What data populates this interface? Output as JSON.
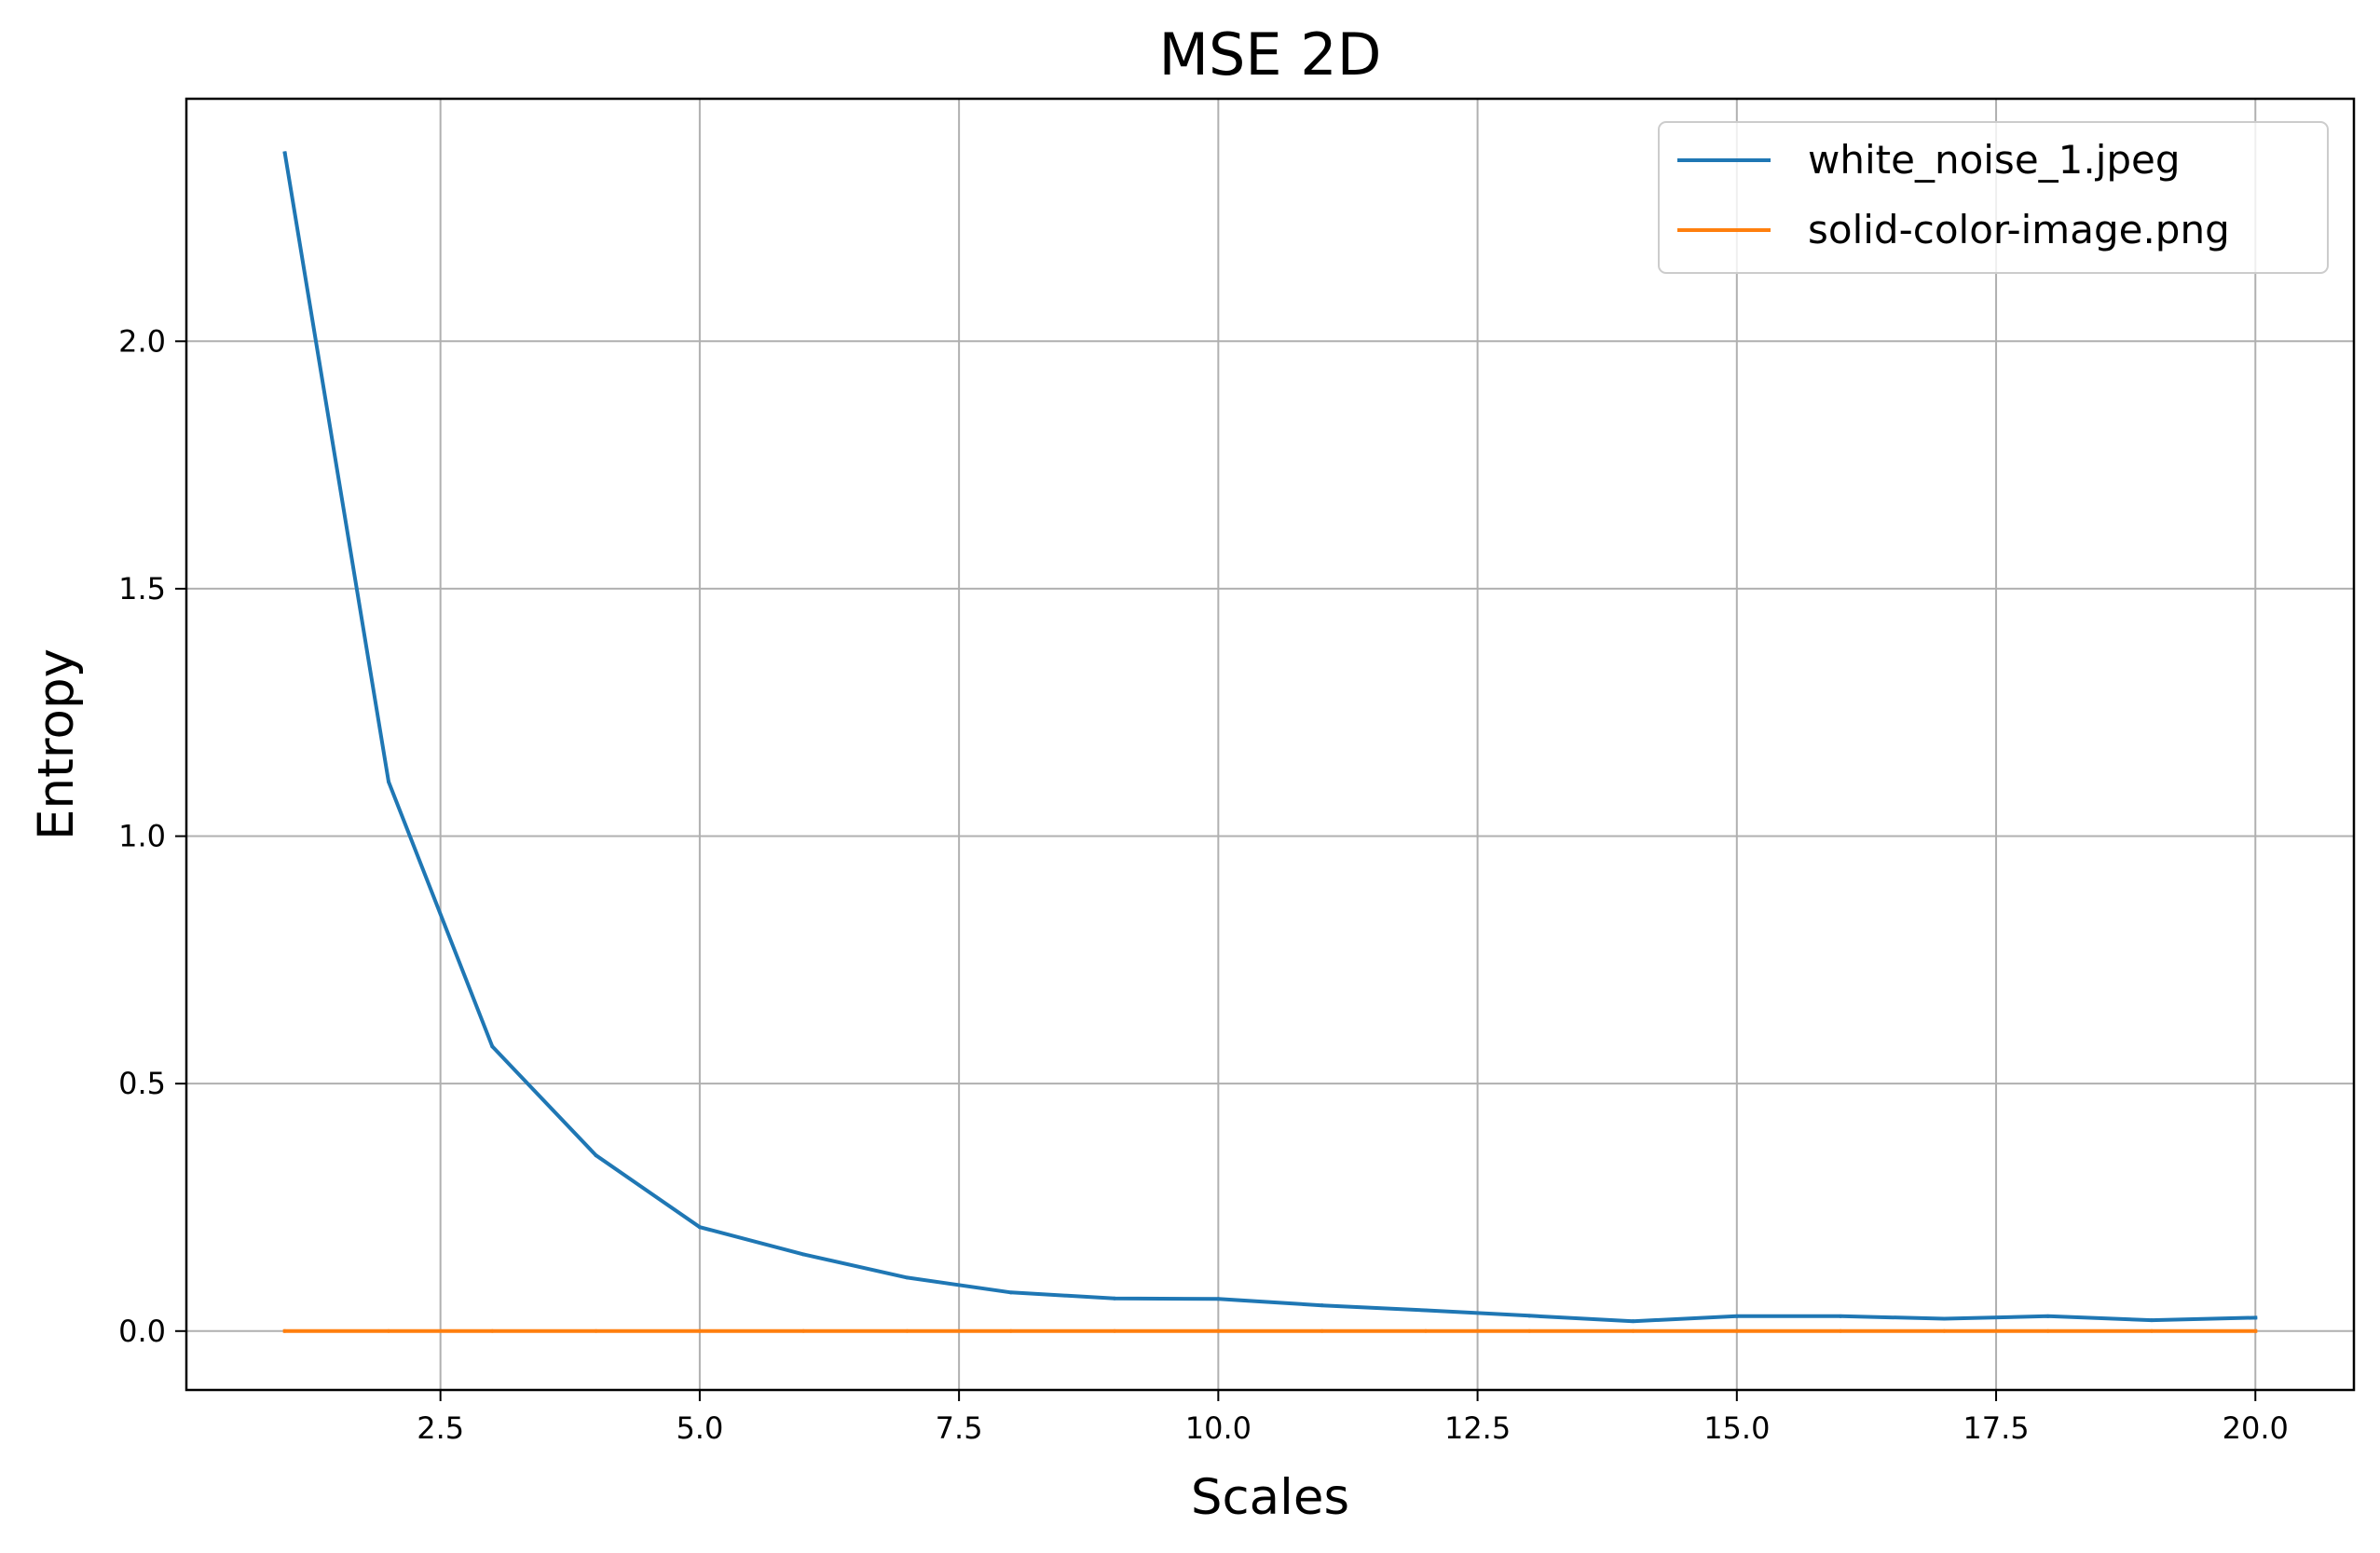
{
  "chart_data": {
    "type": "line",
    "title": "MSE 2D",
    "xlabel": "Scales",
    "ylabel": "Entropy",
    "xlim": [
      0.05,
      20.95
    ],
    "ylim": [
      -0.119,
      2.49
    ],
    "grid": true,
    "legend_position": "top-right",
    "x_ticks": [
      {
        "value": 2.5,
        "label": "2.5"
      },
      {
        "value": 5.0,
        "label": "5.0"
      },
      {
        "value": 7.5,
        "label": "7.5"
      },
      {
        "value": 10.0,
        "label": "10.0"
      },
      {
        "value": 12.5,
        "label": "12.5"
      },
      {
        "value": 15.0,
        "label": "15.0"
      },
      {
        "value": 17.5,
        "label": "17.5"
      },
      {
        "value": 20.0,
        "label": "20.0"
      }
    ],
    "y_ticks": [
      {
        "value": 0.0,
        "label": "0.0"
      },
      {
        "value": 0.5,
        "label": "0.5"
      },
      {
        "value": 1.0,
        "label": "1.0"
      },
      {
        "value": 1.5,
        "label": "1.5"
      },
      {
        "value": 2.0,
        "label": "2.0"
      }
    ],
    "x": [
      1,
      2,
      3,
      4,
      5,
      6,
      7,
      8,
      9,
      10,
      11,
      12,
      13,
      14,
      15,
      16,
      17,
      18,
      19,
      20
    ],
    "series": [
      {
        "name": "white_noise_1.jpeg",
        "color": "#1f77b4",
        "values": [
          2.38,
          1.11,
          0.575,
          0.355,
          0.21,
          0.155,
          0.108,
          0.078,
          0.066,
          0.065,
          0.052,
          0.042,
          0.031,
          0.02,
          0.03,
          0.03,
          0.025,
          0.03,
          0.022,
          0.027
        ]
      },
      {
        "name": "solid-color-image.png",
        "color": "#ff7f0e",
        "values": [
          0,
          0,
          0,
          0,
          0,
          0,
          0,
          0,
          0,
          0,
          0,
          0,
          0,
          0,
          0,
          0,
          0,
          0,
          0,
          0
        ]
      }
    ]
  }
}
